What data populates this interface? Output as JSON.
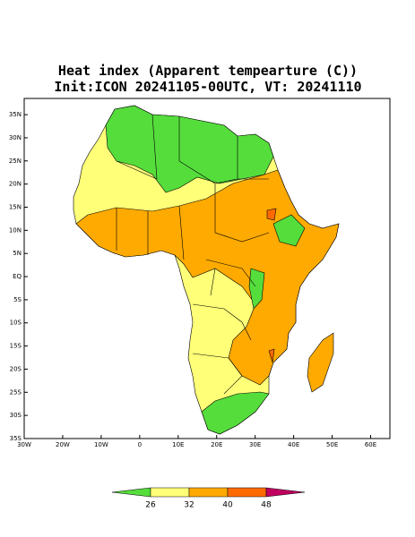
{
  "header": {
    "title": "Heat index (Apparent tempearture (C))",
    "subtitle": "Init:ICON 20241105-00UTC, VT: 20241110"
  },
  "map": {
    "xlim": [
      -30,
      65
    ],
    "ylim": [
      -35,
      38.5
    ],
    "xticks": [
      {
        "value": -30,
        "label": "30W"
      },
      {
        "value": -20,
        "label": "20W"
      },
      {
        "value": -10,
        "label": "10W"
      },
      0,
      {
        "value": 10,
        "label": "10E"
      },
      {
        "value": 20,
        "label": "20E"
      },
      {
        "value": 30,
        "label": "30E"
      },
      {
        "value": 40,
        "label": "40E"
      },
      {
        "value": 50,
        "label": "50E"
      },
      {
        "value": 60,
        "label": "60E"
      }
    ],
    "yticks": [
      {
        "value": 35,
        "label": "35N"
      },
      {
        "value": 30,
        "label": "30N"
      },
      {
        "value": 25,
        "label": "25N"
      },
      {
        "value": 20,
        "label": "20N"
      },
      {
        "value": 15,
        "label": "15N"
      },
      {
        "value": 10,
        "label": "10N"
      },
      {
        "value": 5,
        "label": "5N"
      },
      {
        "value": 0,
        "label": "EQ"
      },
      {
        "value": -5,
        "label": "5S"
      },
      {
        "value": -10,
        "label": "10S"
      },
      {
        "value": -15,
        "label": "15S"
      },
      {
        "value": -20,
        "label": "20S"
      },
      {
        "value": -25,
        "label": "25S"
      },
      {
        "value": -30,
        "label": "30S"
      },
      {
        "value": -35,
        "label": "35S"
      }
    ]
  },
  "colorbar": {
    "ticks": [
      26,
      32,
      40,
      48
    ],
    "colors": [
      "#55dd3c",
      "#ffff78",
      "#ffaa00",
      "#ff6a00",
      "#c00060"
    ]
  }
}
